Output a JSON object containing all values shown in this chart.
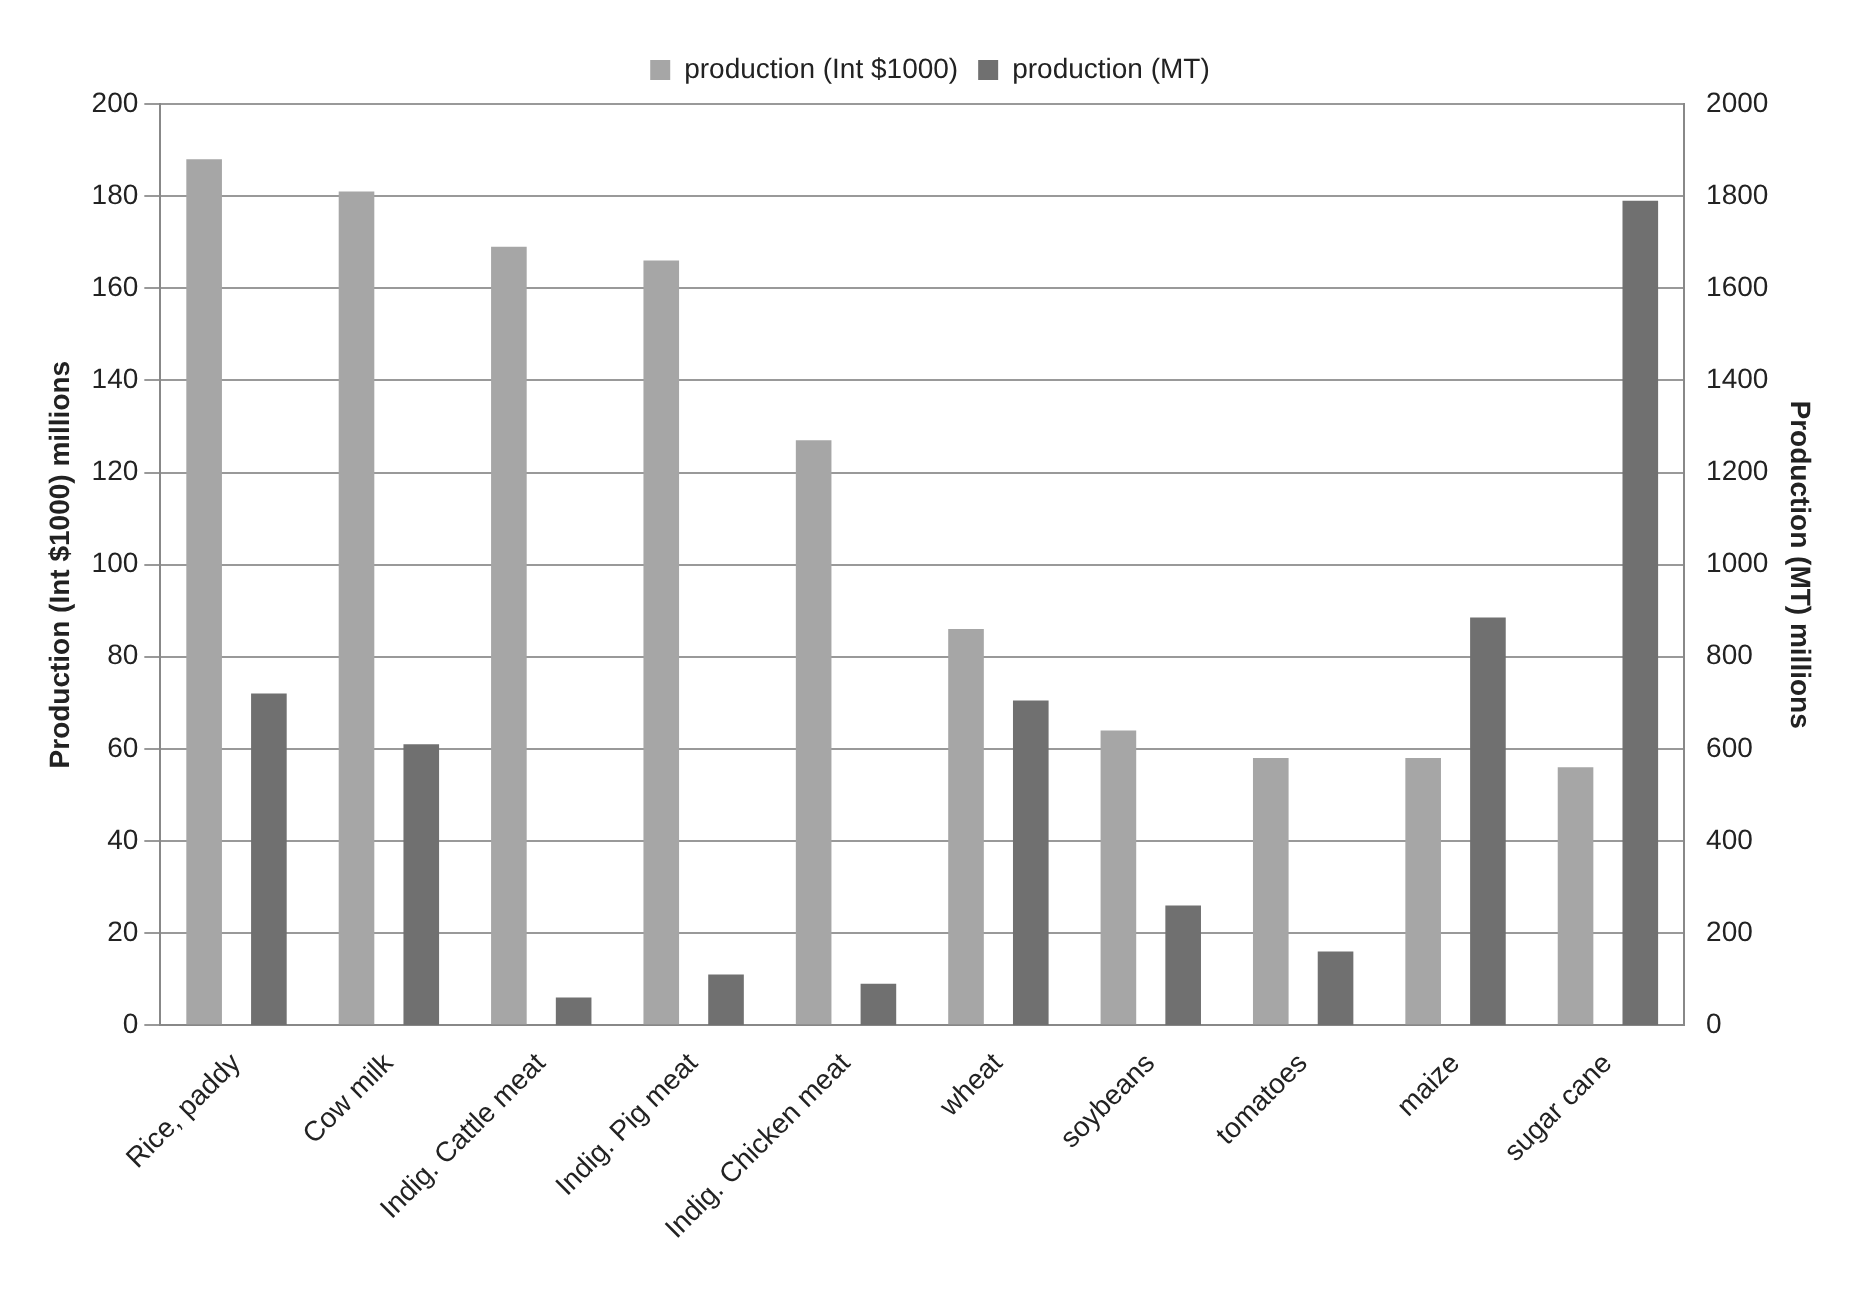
{
  "chart_data": {
    "type": "bar",
    "ylabel": "Production (Int $1000) millions",
    "y2label": "Production (MT) millions",
    "categories": [
      "Rice, paddy",
      "Cow milk",
      "Indig. Cattle meat",
      "Indig. Pig meat",
      "Indig. Chicken meat",
      "wheat",
      "soybeans",
      "tomatoes",
      "maize",
      "sugar cane"
    ],
    "series": [
      {
        "name": "production (Int $1000)",
        "color": "#a6a6a6",
        "values": [
          188,
          181,
          169,
          166,
          127,
          86,
          64,
          58,
          58,
          56
        ]
      },
      {
        "name": "production (MT)",
        "color": "#707070",
        "axis": "y2",
        "values": [
          720,
          610,
          60,
          110,
          90,
          705,
          260,
          160,
          885,
          1790
        ]
      }
    ],
    "ylim": [
      0,
      200
    ],
    "yticks": [
      0,
      20,
      40,
      60,
      80,
      100,
      120,
      140,
      160,
      180,
      200
    ],
    "y2lim": [
      0,
      2000
    ],
    "y2ticks": [
      0,
      200,
      400,
      600,
      800,
      1000,
      1200,
      1400,
      1600,
      1800,
      2000
    ],
    "grid": "y",
    "legend": "top"
  }
}
